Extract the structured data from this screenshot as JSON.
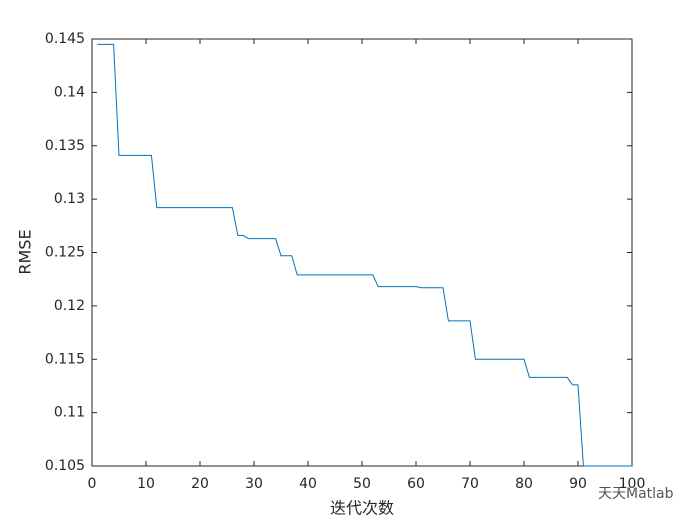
{
  "chart_data": {
    "type": "line",
    "xlabel": "迭代次数",
    "ylabel": "RMSE",
    "watermark": "天天Matlab",
    "x": [
      1,
      2,
      3,
      4,
      5,
      6,
      7,
      8,
      9,
      10,
      11,
      12,
      13,
      14,
      15,
      16,
      17,
      18,
      19,
      20,
      21,
      22,
      23,
      24,
      25,
      26,
      27,
      28,
      29,
      30,
      31,
      32,
      33,
      34,
      35,
      36,
      37,
      38,
      39,
      40,
      41,
      42,
      43,
      44,
      45,
      46,
      47,
      48,
      49,
      50,
      51,
      52,
      53,
      54,
      55,
      56,
      57,
      58,
      59,
      60,
      61,
      62,
      63,
      64,
      65,
      66,
      67,
      68,
      69,
      70,
      71,
      72,
      73,
      74,
      75,
      76,
      77,
      78,
      79,
      80,
      81,
      82,
      83,
      84,
      85,
      86,
      87,
      88,
      89,
      90,
      91,
      92,
      93,
      94,
      95,
      96,
      97,
      98,
      99,
      100
    ],
    "series": [
      {
        "name": "RMSE",
        "color": "#0072bd",
        "values": [
          0.1445,
          0.1445,
          0.1445,
          0.1445,
          0.1341,
          0.1341,
          0.1341,
          0.1341,
          0.1341,
          0.1341,
          0.1341,
          0.1292,
          0.1292,
          0.1292,
          0.1292,
          0.1292,
          0.1292,
          0.1292,
          0.1292,
          0.1292,
          0.1292,
          0.1292,
          0.1292,
          0.1292,
          0.1292,
          0.1292,
          0.1266,
          0.1266,
          0.1263,
          0.1263,
          0.1263,
          0.1263,
          0.1263,
          0.1263,
          0.1247,
          0.1247,
          0.1247,
          0.1229,
          0.1229,
          0.1229,
          0.1229,
          0.1229,
          0.1229,
          0.1229,
          0.1229,
          0.1229,
          0.1229,
          0.1229,
          0.1229,
          0.1229,
          0.1229,
          0.1229,
          0.1218,
          0.1218,
          0.1218,
          0.1218,
          0.1218,
          0.1218,
          0.1218,
          0.1218,
          0.1217,
          0.1217,
          0.1217,
          0.1217,
          0.1217,
          0.1186,
          0.1186,
          0.1186,
          0.1186,
          0.1186,
          0.115,
          0.115,
          0.115,
          0.115,
          0.115,
          0.115,
          0.115,
          0.115,
          0.115,
          0.115,
          0.1133,
          0.1133,
          0.1133,
          0.1133,
          0.1133,
          0.1133,
          0.1133,
          0.1133,
          0.1126,
          0.1126,
          0.105,
          0.105,
          0.105,
          0.105,
          0.105,
          0.105,
          0.105,
          0.105,
          0.105,
          0.105
        ]
      }
    ],
    "xlim": [
      0,
      100
    ],
    "xticks": [
      0,
      10,
      20,
      30,
      40,
      50,
      60,
      70,
      80,
      90,
      100
    ],
    "ylim": [
      0.105,
      0.145
    ],
    "yticks": [
      0.105,
      0.11,
      0.115,
      0.12,
      0.125,
      0.13,
      0.135,
      0.14,
      0.145
    ],
    "grid": false
  }
}
